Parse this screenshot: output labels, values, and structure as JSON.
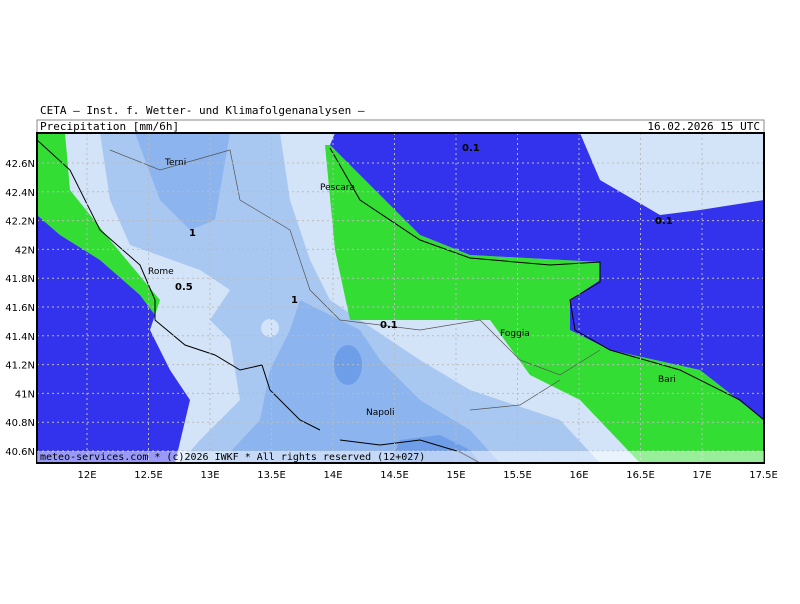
{
  "header": {
    "institute": "CETA — Inst. f. Wetter- und Klimafolgenanalysen —",
    "title": "Precipitation [mm/6h]",
    "valid_time": "16.02.2026 15 UTC"
  },
  "lat_ticks": [
    "42.6N",
    "42.4N",
    "42.2N",
    "42N",
    "41.8N",
    "41.6N",
    "41.4N",
    "41.2N",
    "41N",
    "40.8N",
    "40.6N"
  ],
  "lon_ticks": [
    "12E",
    "12.5E",
    "13E",
    "13.5E",
    "14E",
    "14.5E",
    "15E",
    "15.5E",
    "16E",
    "16.5E",
    "17E",
    "17.5E"
  ],
  "cities": [
    "Terni",
    "Pescara",
    "Rome",
    "Foggia",
    "Bari",
    "Napoli"
  ],
  "contour_labels": [
    "0.1",
    "0.1",
    "1",
    "0.5",
    "1",
    "0.1"
  ],
  "footer": "meteo-services.com * (c)2026 IWKF * All rights reserved (12+027)"
}
